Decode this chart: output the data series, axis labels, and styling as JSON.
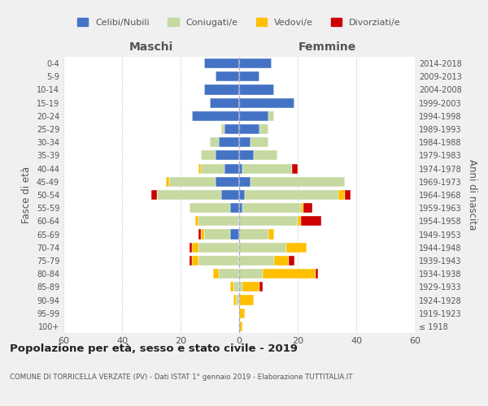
{
  "age_groups": [
    "100+",
    "95-99",
    "90-94",
    "85-89",
    "80-84",
    "75-79",
    "70-74",
    "65-69",
    "60-64",
    "55-59",
    "50-54",
    "45-49",
    "40-44",
    "35-39",
    "30-34",
    "25-29",
    "20-24",
    "15-19",
    "10-14",
    "5-9",
    "0-4"
  ],
  "birth_years": [
    "≤ 1918",
    "1919-1923",
    "1924-1928",
    "1929-1933",
    "1934-1938",
    "1939-1943",
    "1944-1948",
    "1949-1953",
    "1954-1958",
    "1959-1963",
    "1964-1968",
    "1969-1973",
    "1974-1978",
    "1979-1983",
    "1984-1988",
    "1989-1993",
    "1994-1998",
    "1999-2003",
    "2004-2008",
    "2009-2013",
    "2014-2018"
  ],
  "maschi": {
    "celibi": [
      0,
      0,
      0,
      0,
      0,
      0,
      0,
      3,
      0,
      3,
      6,
      8,
      5,
      8,
      7,
      5,
      16,
      10,
      12,
      8,
      12
    ],
    "coniugati": [
      0,
      0,
      1,
      2,
      7,
      14,
      14,
      9,
      14,
      14,
      22,
      16,
      8,
      5,
      3,
      1,
      0,
      0,
      0,
      0,
      0
    ],
    "vedovi": [
      0,
      0,
      1,
      1,
      2,
      2,
      2,
      1,
      1,
      0,
      0,
      1,
      1,
      0,
      0,
      0,
      0,
      0,
      0,
      0,
      0
    ],
    "divorziati": [
      0,
      0,
      0,
      0,
      0,
      1,
      1,
      1,
      0,
      0,
      2,
      0,
      0,
      0,
      0,
      0,
      0,
      0,
      0,
      0,
      0
    ]
  },
  "femmine": {
    "nubili": [
      0,
      0,
      0,
      0,
      0,
      0,
      0,
      0,
      0,
      1,
      2,
      4,
      1,
      5,
      4,
      7,
      10,
      19,
      12,
      7,
      11
    ],
    "coniugate": [
      0,
      0,
      0,
      1,
      8,
      12,
      16,
      10,
      20,
      20,
      32,
      32,
      17,
      8,
      6,
      3,
      2,
      0,
      0,
      0,
      0
    ],
    "vedove": [
      1,
      2,
      5,
      6,
      18,
      5,
      7,
      2,
      1,
      1,
      2,
      0,
      0,
      0,
      0,
      0,
      0,
      0,
      0,
      0,
      0
    ],
    "divorziate": [
      0,
      0,
      0,
      1,
      1,
      2,
      0,
      0,
      7,
      3,
      2,
      0,
      2,
      0,
      0,
      0,
      0,
      0,
      0,
      0,
      0
    ]
  },
  "colors": {
    "celibi": "#4472c4",
    "coniugati": "#c5d9a0",
    "vedovi": "#ffc000",
    "divorziati": "#cc0000"
  },
  "xlim": 60,
  "title": "Popolazione per età, sesso e stato civile - 2019",
  "subtitle": "COMUNE DI TORRICELLA VERZATE (PV) - Dati ISTAT 1° gennaio 2019 - Elaborazione TUTTITALIA.IT",
  "ylabel_left": "Fasce di età",
  "ylabel_right": "Anni di nascita",
  "header_left": "Maschi",
  "header_right": "Femmine",
  "legend_labels": [
    "Celibi/Nubili",
    "Coniugati/e",
    "Vedovi/e",
    "Divorziati/e"
  ],
  "bg_color": "#f0f0f0",
  "plot_bg_color": "#ffffff",
  "grid_color": "#cccccc",
  "text_color": "#555555"
}
